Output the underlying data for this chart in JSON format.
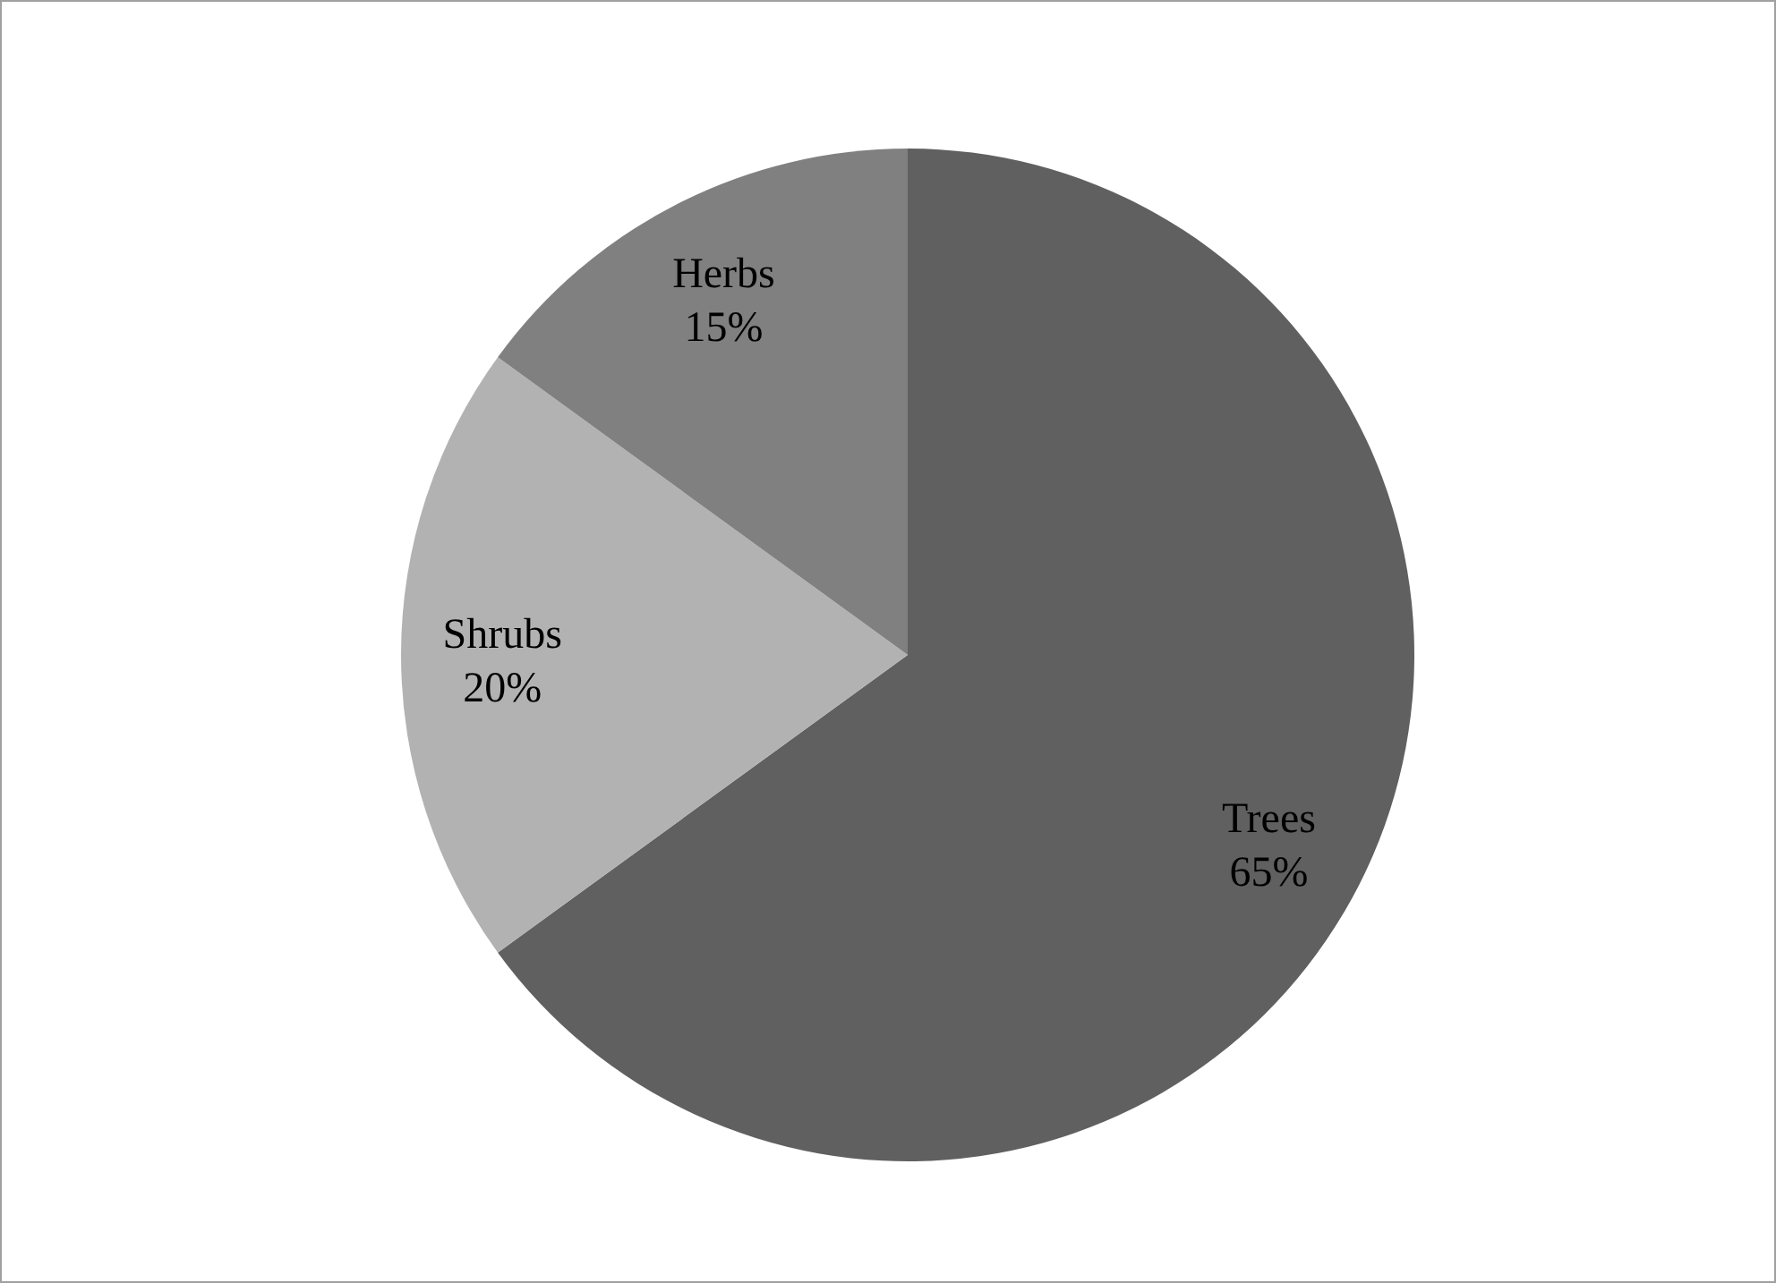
{
  "chart_data": {
    "type": "pie",
    "categories": [
      "Trees",
      "Shrubs",
      "Herbs"
    ],
    "values": [
      65,
      20,
      15
    ],
    "value_labels": [
      "65%",
      "20%",
      "15%"
    ],
    "colors": [
      "#606060",
      "#b2b2b2",
      "#808080"
    ]
  }
}
